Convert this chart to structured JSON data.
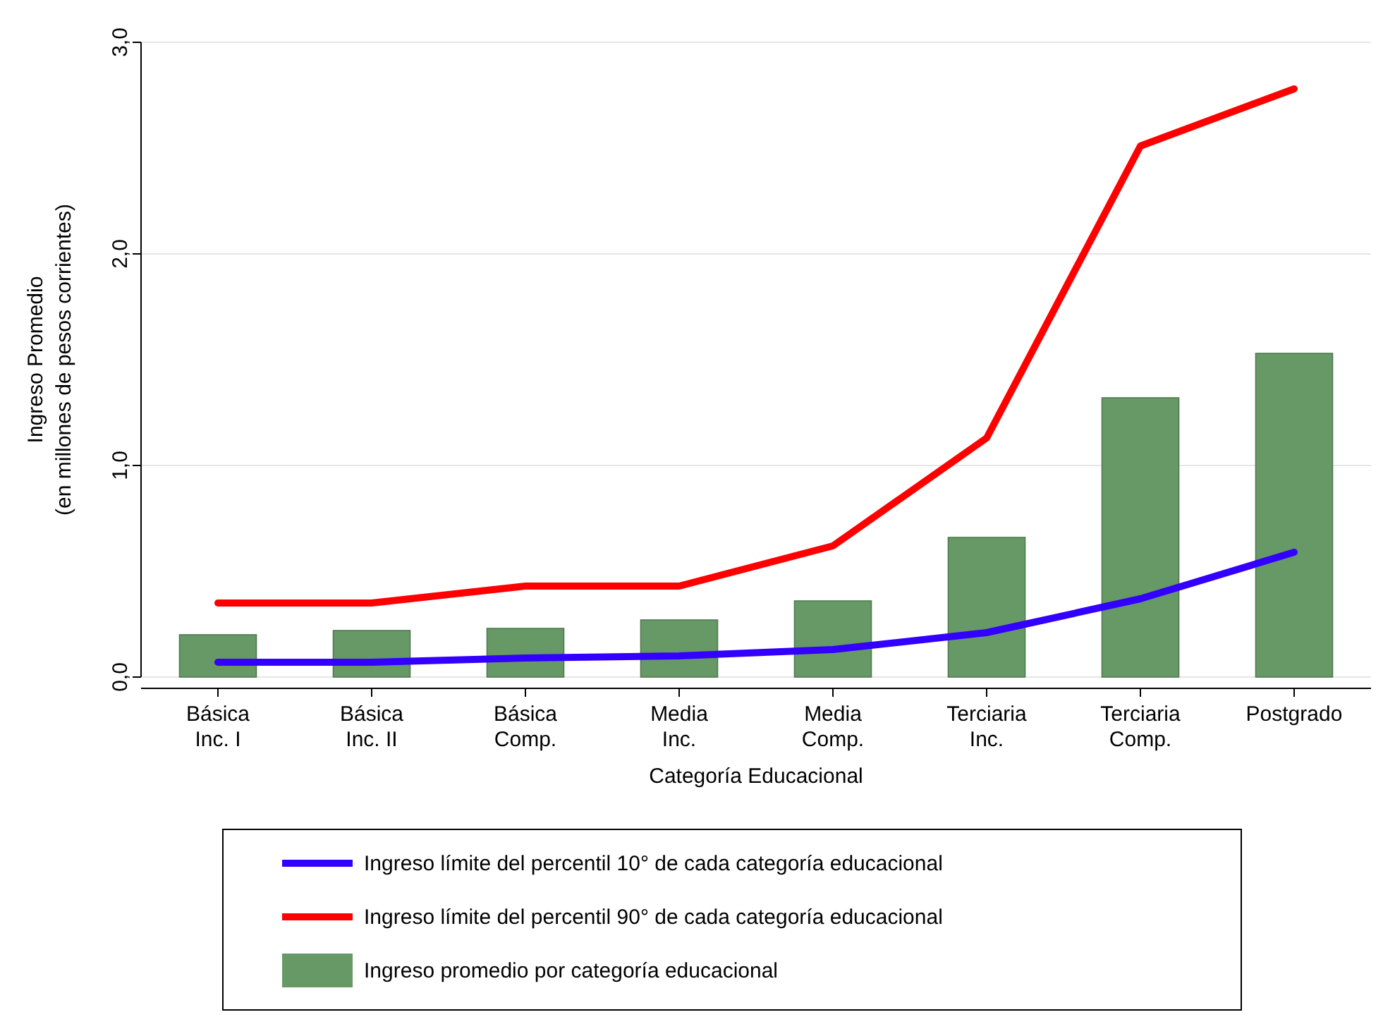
{
  "chart_data": {
    "type": "bar",
    "xlabel": "Categoría Educacional",
    "ylabel": "Ingreso Promedio\n(en millones de pesos corrientes)",
    "categories": [
      "Básica Inc. I",
      "Básica Inc. II",
      "Básica Comp.",
      "Media Inc.",
      "Media Comp.",
      "Terciaria Inc.",
      "Terciaria Comp.",
      "Postgrado"
    ],
    "series": [
      {
        "type": "line",
        "name": "Ingreso límite del percentil 10° de cada categoría educacional",
        "color": "#3300ff",
        "values": [
          0.07,
          0.07,
          0.09,
          0.1,
          0.13,
          0.21,
          0.37,
          0.59
        ]
      },
      {
        "type": "line",
        "name": "Ingreso límite del percentil 90° de cada categoría educacional",
        "color": "#ff0000",
        "values": [
          0.35,
          0.35,
          0.43,
          0.43,
          0.62,
          1.13,
          2.51,
          2.78
        ]
      },
      {
        "name": "Ingreso promedio por categoría educacional",
        "color": "#669966",
        "values": [
          0.2,
          0.22,
          0.23,
          0.27,
          0.36,
          0.66,
          1.32,
          1.53
        ]
      }
    ],
    "ylim": [
      0,
      3
    ],
    "yticks": [
      {
        "value": 0,
        "label": "0,0"
      },
      {
        "value": 1,
        "label": "1,0"
      },
      {
        "value": 2,
        "label": "2,0"
      },
      {
        "value": 3,
        "label": "3,0"
      }
    ],
    "grid": "y",
    "legend": "bottom",
    "marker": "none",
    "line_style": "solid"
  }
}
